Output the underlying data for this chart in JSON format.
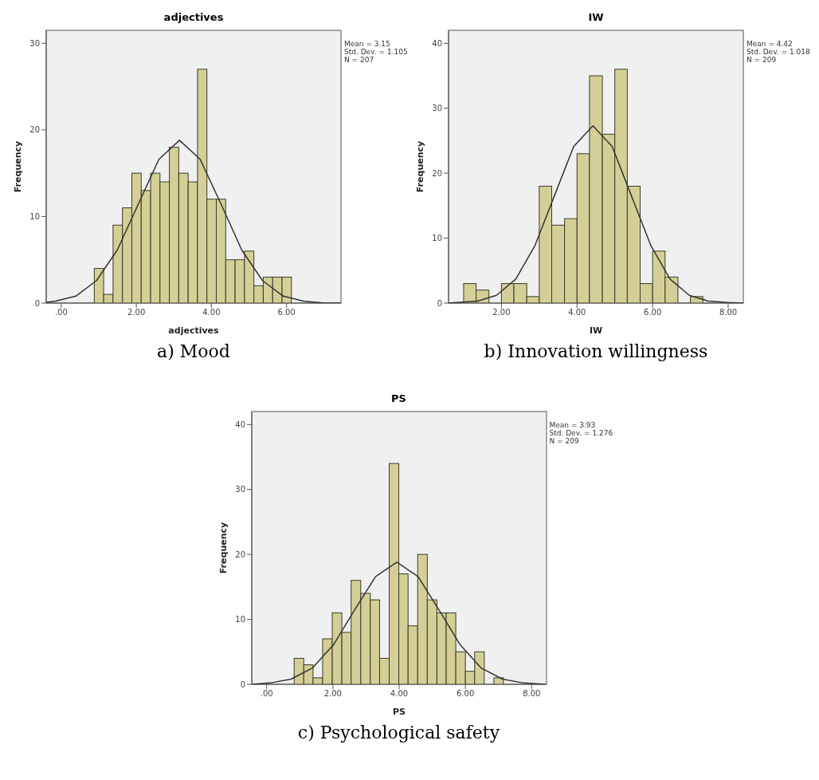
{
  "chart_data": [
    {
      "type": "histogram",
      "title": "adjectives",
      "xlabel": "adjectives",
      "ylabel": "Frequency",
      "color": "#d4cf96",
      "bins": [
        0.88,
        1.13,
        1.38,
        1.63,
        1.88,
        2.13,
        2.38,
        2.63,
        2.88,
        3.13,
        3.38,
        3.63,
        3.88,
        4.13,
        4.38,
        4.63,
        4.88,
        5.13,
        5.38,
        5.63,
        5.88,
        6.13
      ],
      "values": [
        4,
        1,
        9,
        11,
        15,
        13,
        15,
        14,
        18,
        15,
        14,
        27,
        12,
        12,
        5,
        5,
        6,
        2,
        3,
        3,
        3
      ],
      "series": [
        {
          "type": "line",
          "color": "#333333",
          "x": [
            -0.4,
            -0.17,
            0.39,
            0.94,
            1.49,
            2.05,
            2.6,
            3.15,
            3.7,
            4.26,
            4.81,
            5.36,
            5.91,
            6.47,
            7.02,
            7.45
          ],
          "values": [
            0.1,
            0.2,
            0.8,
            2.6,
            6.1,
            11.4,
            16.6,
            18.8,
            16.6,
            11.4,
            6.1,
            2.6,
            0.8,
            0.2,
            0,
            0
          ]
        }
      ],
      "xlim": [
        -0.4,
        7.45
      ],
      "xticks": [
        {
          "value": 0,
          "label": ".00"
        },
        {
          "value": 2,
          "label": "2.00"
        },
        {
          "value": 4,
          "label": "4.00"
        },
        {
          "value": 6,
          "label": "6.00"
        }
      ],
      "ylim": [
        0,
        31.5
      ],
      "yticks": [
        0,
        10,
        20,
        30
      ],
      "grid": false,
      "annotations": [
        "Mean = 3.15",
        "Std. Dev. = 1.105",
        "N = 207",
        "a) Mood"
      ]
    },
    {
      "type": "histogram",
      "title": "IW",
      "xlabel": "IW",
      "ylabel": "Frequency",
      "color": "#d4cf96",
      "bins": [
        1,
        1.33,
        1.67,
        2,
        2.33,
        2.67,
        3,
        3.33,
        3.67,
        4,
        4.33,
        4.67,
        5,
        5.33,
        5.67,
        6,
        6.33,
        6.67,
        7,
        7.33
      ],
      "values": [
        3,
        2,
        0,
        3,
        3,
        1,
        18,
        12,
        13,
        23,
        35,
        26,
        36,
        18,
        3,
        8,
        4,
        0,
        1
      ],
      "series": [
        {
          "type": "line",
          "color": "#333333",
          "x": [
            0.6,
            1.37,
            1.87,
            2.38,
            2.89,
            3.4,
            3.91,
            4.42,
            4.93,
            5.44,
            5.95,
            6.46,
            6.97,
            7.47,
            7.98,
            8.4
          ],
          "values": [
            0,
            0.3,
            1.2,
            3.7,
            8.9,
            16.5,
            24.1,
            27.3,
            24.1,
            16.5,
            8.9,
            3.7,
            1.2,
            0.3,
            0.1,
            0
          ]
        }
      ],
      "xlim": [
        0.6,
        8.4
      ],
      "xticks": [
        {
          "value": 2,
          "label": "2.00"
        },
        {
          "value": 4,
          "label": "4.00"
        },
        {
          "value": 6,
          "label": "6.00"
        },
        {
          "value": 8,
          "label": "8.00"
        }
      ],
      "ylim": [
        0,
        42
      ],
      "yticks": [
        0,
        10,
        20,
        30,
        40
      ],
      "grid": false,
      "annotations": [
        "Mean = 4.42",
        "Std. Dev. = 1.018",
        "N = 209",
        "b) Innovation willingness"
      ]
    },
    {
      "type": "histogram",
      "title": "PS",
      "xlabel": "PS",
      "ylabel": "Frequency",
      "color": "#d4cf96",
      "bins": [
        0.83,
        1.12,
        1.4,
        1.69,
        1.98,
        2.27,
        2.55,
        2.84,
        3.13,
        3.41,
        3.7,
        3.99,
        4.27,
        4.56,
        4.85,
        5.14,
        5.42,
        5.71,
        6,
        6.28,
        6.57,
        6.86,
        7.15
      ],
      "values": [
        4,
        3,
        1,
        7,
        11,
        8,
        16,
        14,
        13,
        4,
        34,
        17,
        9,
        20,
        13,
        11,
        11,
        5,
        2,
        5,
        0,
        1
      ],
      "series": [
        {
          "type": "line",
          "color": "#333333",
          "x": [
            -0.45,
            0.1,
            0.74,
            1.38,
            2.02,
            2.65,
            3.29,
            3.93,
            4.57,
            5.21,
            5.84,
            6.48,
            7.12,
            7.76,
            8.4
          ],
          "values": [
            0,
            0.2,
            0.8,
            2.5,
            6.1,
            11.4,
            16.6,
            18.8,
            16.6,
            11.4,
            6.1,
            2.5,
            0.8,
            0.2,
            0
          ]
        }
      ],
      "xlim": [
        -0.45,
        8.45
      ],
      "xticks": [
        {
          "value": 0,
          "label": ".00"
        },
        {
          "value": 2,
          "label": "2.00"
        },
        {
          "value": 4,
          "label": "4.00"
        },
        {
          "value": 6,
          "label": "6.00"
        },
        {
          "value": 8,
          "label": "8.00"
        }
      ],
      "ylim": [
        0,
        42
      ],
      "yticks": [
        0,
        10,
        20,
        30,
        40
      ],
      "grid": false,
      "annotations": [
        "Mean = 3.93",
        "Std. Dev. = 1.276",
        "N = 209",
        "c) Psychological safety"
      ]
    }
  ]
}
